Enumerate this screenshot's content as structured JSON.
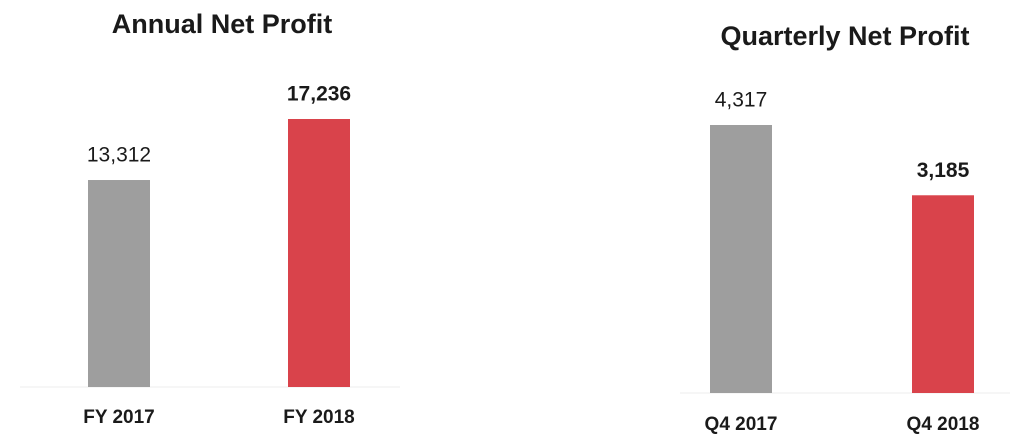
{
  "chart_data": [
    {
      "type": "bar",
      "title": "Annual Net Profit",
      "categories": [
        "FY 2017",
        "FY 2018"
      ],
      "values": [
        13312,
        17236
      ],
      "value_labels": [
        "13,312",
        "17,236"
      ],
      "colors": [
        "#9e9e9e",
        "#d9434b"
      ]
    },
    {
      "type": "bar",
      "title": "Quarterly Net Profit",
      "categories": [
        "Q4 2017",
        "Q4 2018"
      ],
      "values": [
        4317,
        3185
      ],
      "value_labels": [
        "4,317",
        "3,185"
      ],
      "colors": [
        "#9e9e9e",
        "#d9434b"
      ]
    }
  ]
}
